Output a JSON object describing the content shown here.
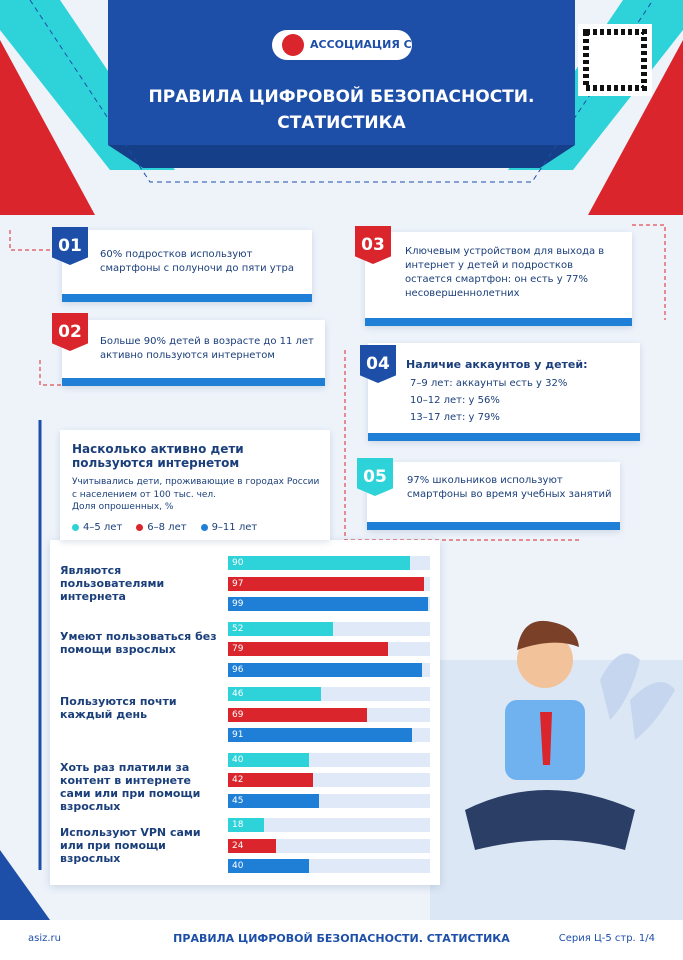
{
  "header": {
    "brand": "АССОЦИАЦИЯ СИЗ",
    "title_lines": [
      "ПРАВИЛА ЦИФРОВОЙ БЕЗОПАСНОСТИ.",
      "СТАТИСТИКА"
    ]
  },
  "facts": [
    {
      "number": "01",
      "text": "60% подростков используют смартфоны с полуночи до пяти утра"
    },
    {
      "number": "02",
      "text": "Больше 90% детей в возрасте до 11 лет активно пользуются интернетом"
    },
    {
      "number": "03",
      "text": "Ключевым устройством для выхода в интернет у детей и подростков остается смартфон: он есть у 77% несовершеннолетних"
    },
    {
      "number": "04",
      "title": "Наличие аккаунтов у детей:",
      "items": [
        "7–9 лет: аккаунты есть у 32%",
        "10–12 лет: у 56%",
        "13–17 лет: у 79%"
      ]
    },
    {
      "number": "05",
      "text": "97% школьников используют смартфоны во время учебных занятий"
    }
  ],
  "chart_data": {
    "type": "bar",
    "orientation": "horizontal",
    "title": "Насколько активно дети пользуются интернетом",
    "subtitle": "Учитывались дети, проживающие в городах России с населением от 100 тыс. чел.",
    "note": "Доля опрошенных, %",
    "categories": [
      "Являются пользователями интернета",
      "Умеют пользоваться без помощи взрослых",
      "Пользуются почти каждый день",
      "Хоть раз платили за контент в интернете сами или при помощи взрослых",
      "Используют VPN сами или при помощи взрослых"
    ],
    "series": [
      {
        "name": "4–5 лет",
        "color": "#2ed3d9",
        "values": [
          90,
          52,
          46,
          40,
          18
        ]
      },
      {
        "name": "6–8 лет",
        "color": "#d9252b",
        "values": [
          97,
          79,
          69,
          42,
          24
        ]
      },
      {
        "name": "9–11 лет",
        "color": "#1f7fd6",
        "values": [
          99,
          96,
          91,
          45,
          40
        ]
      }
    ],
    "xlim": [
      0,
      100
    ]
  },
  "footer": {
    "site": "asiz.ru",
    "title": "ПРАВИЛА ЦИФРОВОЙ БЕЗОПАСНОСТИ. СТАТИСТИКА",
    "page": "Серия Ц-5 стр. 1/4"
  }
}
